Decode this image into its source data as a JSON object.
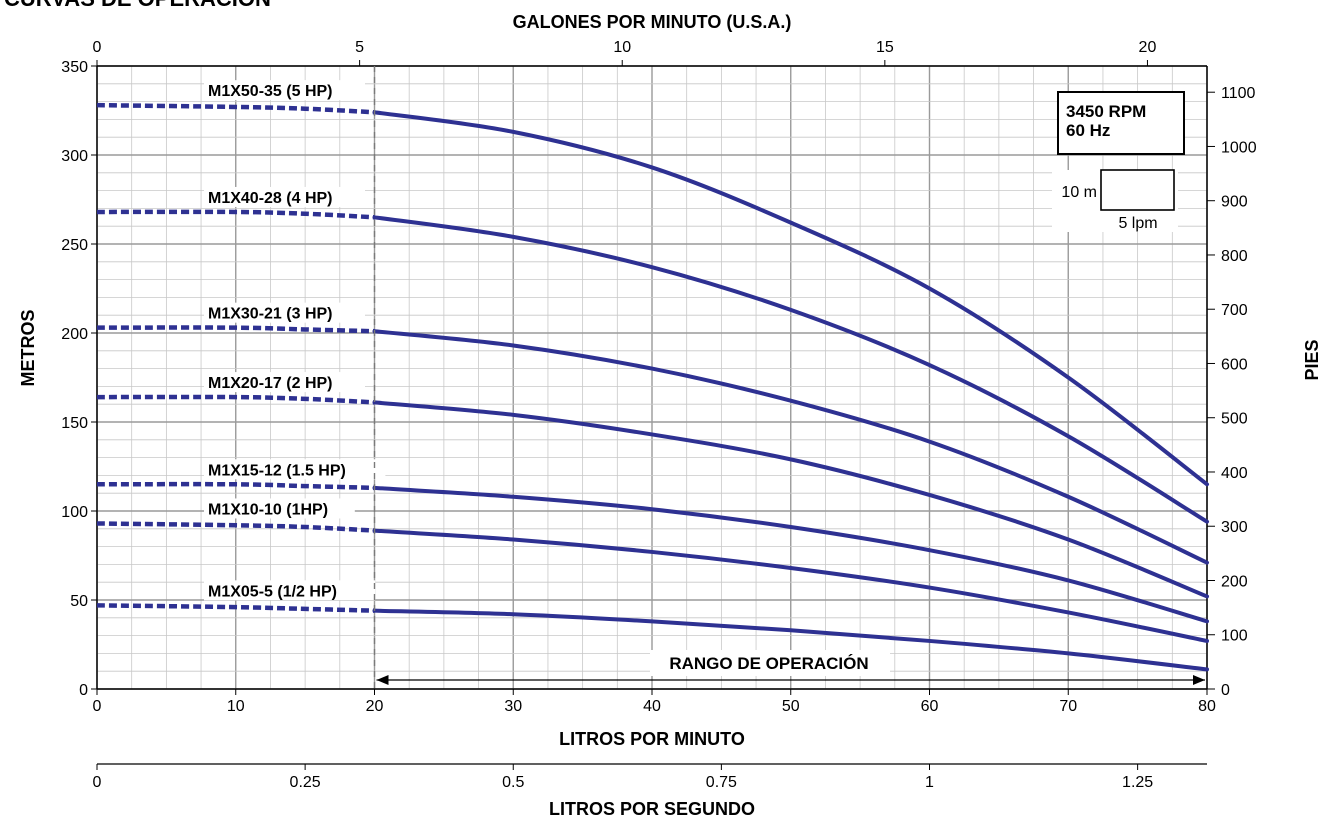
{
  "chart_data": {
    "type": "line",
    "title": "CURVAS DE OPERACIÓN",
    "xlabel_bottom": "LITROS POR MINUTO",
    "xlabel_top": "GALONES POR MINUTO (U.S.A.)",
    "xlabel_lps": "LITROS POR SEGUNDO",
    "ylabel_left": "METROS",
    "ylabel_right": "PIES",
    "xlim": [
      0,
      80
    ],
    "ylim": [
      0,
      350
    ],
    "xticks": [
      0,
      10,
      20,
      30,
      40,
      50,
      60,
      70,
      80
    ],
    "yticks": [
      0,
      50,
      100,
      150,
      200,
      250,
      300,
      350
    ],
    "gpm_ticks": [
      0,
      5,
      10,
      15,
      20
    ],
    "feet_ticks": [
      0,
      100,
      200,
      300,
      400,
      500,
      600,
      700,
      800,
      900,
      1000,
      1100
    ],
    "lps_ticks": [
      "0",
      "0.25",
      "0.5",
      "0.75",
      "1",
      "1.25"
    ],
    "grid": true,
    "info_box": {
      "rpm": "3450 RPM",
      "hz": "60 Hz"
    },
    "scale_box": {
      "vertical": "10 m",
      "horizontal": "5 lpm"
    },
    "range_label": "RANGO DE OPERACIÓN",
    "operating_range": [
      20,
      80
    ],
    "color": "#2e3192",
    "series": [
      {
        "name": "M1X50-35 (5 HP)",
        "x": [
          0,
          10,
          15,
          20,
          30,
          40,
          50,
          60,
          70,
          80
        ],
        "y": [
          328,
          327,
          326,
          324,
          313,
          293,
          262,
          225,
          175,
          115
        ]
      },
      {
        "name": "M1X40-28 (4 HP)",
        "x": [
          0,
          10,
          15,
          20,
          30,
          40,
          50,
          60,
          70,
          80
        ],
        "y": [
          268,
          268,
          267,
          265,
          254,
          237,
          213,
          182,
          142,
          94
        ]
      },
      {
        "name": "M1X30-21 (3 HP)",
        "x": [
          0,
          10,
          15,
          20,
          30,
          40,
          50,
          60,
          70,
          80
        ],
        "y": [
          203,
          203,
          202,
          201,
          193,
          180,
          162,
          139,
          108,
          71
        ]
      },
      {
        "name": "M1X20-17 (2 HP)",
        "x": [
          0,
          10,
          15,
          20,
          30,
          40,
          50,
          60,
          70,
          80
        ],
        "y": [
          164,
          164,
          163,
          161,
          154,
          143,
          129,
          109,
          84,
          52
        ]
      },
      {
        "name": "M1X15-12 (1.5 HP)",
        "x": [
          0,
          10,
          15,
          20,
          30,
          40,
          50,
          60,
          70,
          80
        ],
        "y": [
          115,
          115,
          114,
          113,
          108,
          101,
          91,
          78,
          61,
          38
        ]
      },
      {
        "name": "M1X10-10 (1HP)",
        "x": [
          0,
          10,
          15,
          20,
          30,
          40,
          50,
          60,
          70,
          80
        ],
        "y": [
          93,
          92,
          91,
          89,
          84,
          77,
          68,
          57,
          43,
          27
        ]
      },
      {
        "name": "M1X05-5 (1/2 HP)",
        "x": [
          0,
          10,
          15,
          20,
          30,
          40,
          50,
          60,
          70,
          80
        ],
        "y": [
          47,
          46,
          45,
          44,
          42,
          38,
          33,
          27,
          20,
          11
        ]
      }
    ]
  }
}
